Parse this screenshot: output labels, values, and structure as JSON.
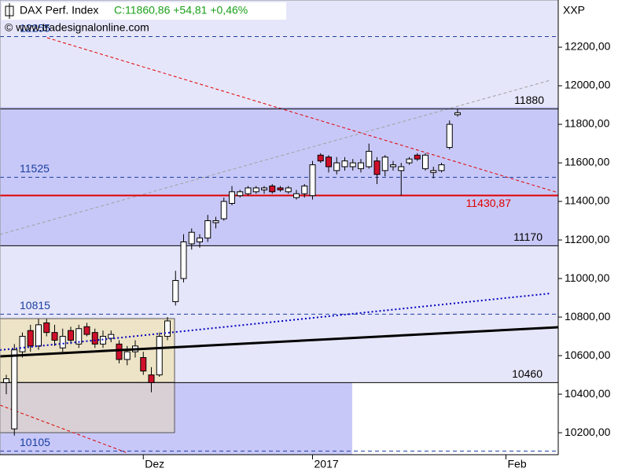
{
  "chart_data": {
    "type": "candlestick",
    "title": "DAX Perf. Index",
    "quote": "C:11860,86 +54,81 +0,46%",
    "watermark": "© www.tradesignalonline.com",
    "axis_unit": "XXP",
    "categories": [
      null,
      null,
      null,
      null,
      null,
      null,
      null,
      null,
      null,
      null,
      null,
      null,
      null,
      null,
      null,
      null,
      null,
      "Dez",
      null,
      null,
      null,
      null,
      null,
      null,
      null,
      null,
      null,
      null,
      null,
      null,
      null,
      null,
      null,
      null,
      null,
      null,
      null,
      null,
      "2017",
      null,
      null,
      null,
      null,
      null,
      null,
      null,
      null,
      null,
      null,
      null,
      null,
      null,
      null,
      null,
      null,
      null,
      null,
      null,
      null,
      null,
      null,
      null,
      "Feb",
      null,
      null,
      null,
      null,
      null,
      null
    ],
    "open": [
      10460,
      10220,
      10620,
      10730,
      10650,
      10770,
      10720,
      10640,
      10730,
      10660,
      10750,
      10720,
      10660,
      10690,
      10660,
      10580,
      10620,
      10590,
      10500,
      10500,
      10700,
      10880,
      11000,
      11180,
      11190,
      11210,
      11290,
      11310,
      11390,
      11430,
      11440,
      11450,
      11460,
      11480,
      11470,
      11450,
      11420,
      11440,
      11430,
      11640,
      11630,
      11560,
      11580,
      11580,
      11570,
      11580,
      11610,
      11560,
      11580,
      11560,
      11600,
      11640,
      11570,
      11550,
      11560,
      11680,
      11850,
      null,
      null,
      null,
      null,
      null,
      null,
      null,
      null,
      null,
      null,
      null,
      null
    ],
    "high": [
      10500,
      10660,
      10720,
      10760,
      10790,
      10790,
      10760,
      10740,
      10750,
      10760,
      10770,
      10740,
      10730,
      10730,
      10680,
      10650,
      10680,
      10620,
      10540,
      10720,
      10800,
      11040,
      11230,
      11260,
      11230,
      11330,
      11320,
      11420,
      11480,
      11460,
      11480,
      11480,
      11480,
      11490,
      11480,
      11480,
      11460,
      11490,
      11610,
      11650,
      11640,
      11630,
      11630,
      11620,
      11620,
      11700,
      11630,
      11640,
      11610,
      11600,
      11630,
      11650,
      11650,
      11580,
      11600,
      11820,
      11880,
      null,
      null,
      null,
      null,
      null,
      null,
      null,
      null,
      null,
      null,
      null,
      null
    ],
    "low": [
      10400,
      10185,
      10590,
      10620,
      10630,
      10700,
      10650,
      10620,
      10660,
      10640,
      10700,
      10640,
      10640,
      10670,
      10560,
      10550,
      10590,
      10500,
      10410,
      10490,
      10680,
      10860,
      10980,
      11150,
      11160,
      11190,
      11260,
      11300,
      11380,
      11420,
      11430,
      11440,
      11440,
      11440,
      11450,
      11440,
      11410,
      11420,
      11410,
      11600,
      11550,
      11540,
      11560,
      11560,
      11550,
      11570,
      11490,
      11530,
      11560,
      11430,
      11590,
      11610,
      11560,
      11520,
      11550,
      11670,
      11840,
      null,
      null,
      null,
      null,
      null,
      null,
      null,
      null,
      null,
      null,
      null,
      null
    ],
    "close": [
      10480,
      10630,
      10700,
      10650,
      10760,
      10720,
      10680,
      10700,
      10680,
      10740,
      10710,
      10660,
      10700,
      10710,
      10580,
      10620,
      10650,
      10520,
      10460,
      10700,
      10780,
      10990,
      11190,
      11240,
      11210,
      11300,
      11300,
      11400,
      11450,
      11450,
      11470,
      11470,
      11470,
      11450,
      11460,
      11470,
      11440,
      11480,
      11590,
      11610,
      11580,
      11600,
      11610,
      11600,
      11600,
      11660,
      11540,
      11630,
      11590,
      11580,
      11620,
      11620,
      11640,
      11560,
      11590,
      11800,
      11860,
      null,
      null,
      null,
      null,
      null,
      null,
      null,
      null,
      null,
      null,
      null,
      null
    ],
    "up_color": "#ffffff",
    "down_color": "#d0102a",
    "ylim": [
      10086,
      12445
    ],
    "yticks": [
      {
        "value": 10200,
        "label": "10200,00"
      },
      {
        "value": 10400,
        "label": "10400,00"
      },
      {
        "value": 10600,
        "label": "10600,00"
      },
      {
        "value": 10800,
        "label": "10800,00"
      },
      {
        "value": 11000,
        "label": "11000,00"
      },
      {
        "value": 11200,
        "label": "11200,00"
      },
      {
        "value": 11400,
        "label": "11400,00"
      },
      {
        "value": 11600,
        "label": "11600,00"
      },
      {
        "value": 11800,
        "label": "11800,00"
      },
      {
        "value": 12000,
        "label": "12000,00"
      },
      {
        "value": 12200,
        "label": "12200,00"
      }
    ],
    "levels": [
      {
        "value": 12255,
        "label": "12255",
        "color": "#1a3ea0",
        "dash": true
      },
      {
        "value": 11880,
        "label": "11880",
        "color": "#000000",
        "dash": false
      },
      {
        "value": 11525,
        "label": "11525",
        "color": "#1a3ea0",
        "dash": true
      },
      {
        "value": 11430.87,
        "label": "11430,87",
        "color": "#e00000",
        "dash": false
      },
      {
        "value": 11170,
        "label": "11170",
        "color": "#000000",
        "dash": false
      },
      {
        "value": 10815,
        "label": "10815",
        "color": "#1a3ea0",
        "dash": true
      },
      {
        "value": 10460,
        "label": "10460",
        "color": "#000000",
        "dash": false
      },
      {
        "value": 10105,
        "label": "10105",
        "color": "#1a3ea0",
        "dash": true
      }
    ]
  }
}
